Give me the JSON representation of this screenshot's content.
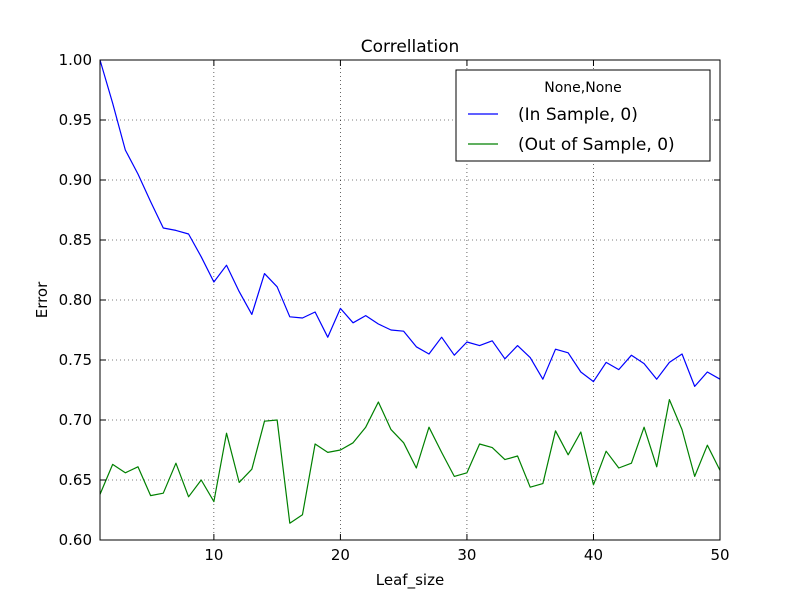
{
  "chart_data": {
    "type": "line",
    "title": "Correllation",
    "xlabel": "Leaf_size",
    "ylabel": "Error",
    "xlim": [
      1,
      50
    ],
    "ylim": [
      0.6,
      1.0
    ],
    "grid": true,
    "legend": {
      "title": "None,None",
      "placement": "top-right"
    },
    "xticks": [
      10,
      20,
      30,
      40,
      50
    ],
    "xtick_labels": [
      "10",
      "20",
      "30",
      "40",
      "50"
    ],
    "yticks": [
      0.6,
      0.65,
      0.7,
      0.75,
      0.8,
      0.85,
      0.9,
      0.95,
      1.0
    ],
    "ytick_labels": [
      "0.60",
      "0.65",
      "0.70",
      "0.75",
      "0.80",
      "0.85",
      "0.90",
      "0.95",
      "1.00"
    ],
    "x": [
      1,
      2,
      3,
      4,
      5,
      6,
      7,
      8,
      9,
      10,
      11,
      12,
      13,
      14,
      15,
      16,
      17,
      18,
      19,
      20,
      21,
      22,
      23,
      24,
      25,
      26,
      27,
      28,
      29,
      30,
      31,
      32,
      33,
      34,
      35,
      36,
      37,
      38,
      39,
      40,
      41,
      42,
      43,
      44,
      45,
      46,
      47,
      48,
      49,
      50
    ],
    "series": [
      {
        "name": "(In Sample, 0)",
        "color": "#0000ff",
        "values": [
          1.0,
          0.964,
          0.925,
          0.905,
          0.882,
          0.86,
          0.858,
          0.855,
          0.836,
          0.815,
          0.829,
          0.807,
          0.788,
          0.822,
          0.811,
          0.786,
          0.785,
          0.79,
          0.769,
          0.793,
          0.781,
          0.787,
          0.78,
          0.775,
          0.774,
          0.761,
          0.755,
          0.769,
          0.754,
          0.765,
          0.762,
          0.766,
          0.751,
          0.762,
          0.752,
          0.734,
          0.759,
          0.756,
          0.74,
          0.732,
          0.748,
          0.742,
          0.754,
          0.747,
          0.734,
          0.748,
          0.755,
          0.728,
          0.74,
          0.734
        ]
      },
      {
        "name": "(Out of Sample, 0)",
        "color": "#008000",
        "values": [
          0.638,
          0.663,
          0.656,
          0.661,
          0.637,
          0.639,
          0.664,
          0.636,
          0.65,
          0.632,
          0.689,
          0.648,
          0.659,
          0.699,
          0.7,
          0.614,
          0.621,
          0.68,
          0.673,
          0.675,
          0.681,
          0.694,
          0.715,
          0.692,
          0.681,
          0.66,
          0.694,
          0.673,
          0.653,
          0.656,
          0.68,
          0.677,
          0.667,
          0.67,
          0.644,
          0.647,
          0.691,
          0.671,
          0.69,
          0.646,
          0.674,
          0.66,
          0.664,
          0.694,
          0.661,
          0.717,
          0.692,
          0.653,
          0.679,
          0.658
        ]
      }
    ]
  }
}
